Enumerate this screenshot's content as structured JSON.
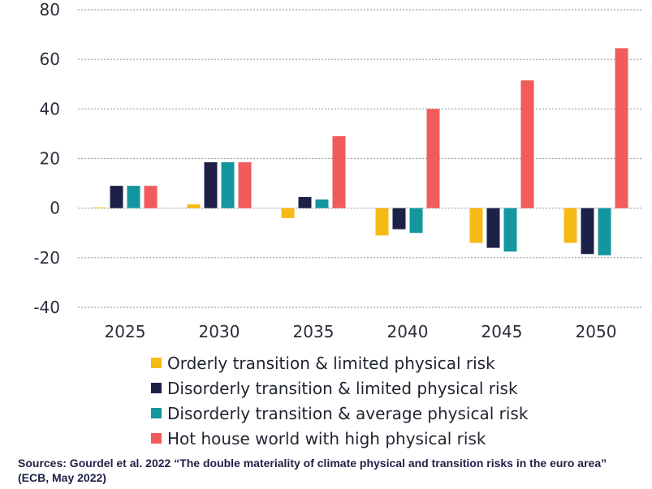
{
  "chart_data": {
    "type": "bar",
    "categories": [
      "2025",
      "2030",
      "2035",
      "2040",
      "2045",
      "2050"
    ],
    "ylim": [
      -40,
      80
    ],
    "yticks": [
      -40,
      -20,
      0,
      20,
      40,
      60,
      80
    ],
    "grid": "horizontal dotted",
    "legend_placement": "bottom",
    "series": [
      {
        "name": "Orderly transition & limited physical risk",
        "color": "#f7b913",
        "values": [
          0.3,
          1.5,
          -4,
          -11,
          -14,
          -14
        ]
      },
      {
        "name": "Disorderly transition & limited physical risk",
        "color": "#1d2148",
        "values": [
          9,
          18.5,
          4.5,
          -8.5,
          -16,
          -18.5
        ]
      },
      {
        "name": "Disorderly transition & average physical risk",
        "color": "#13969d",
        "values": [
          9,
          18.5,
          3.5,
          -10,
          -17.5,
          -19
        ]
      },
      {
        "name": "Hot house world with high physical risk",
        "color": "#f15b5b",
        "values": [
          9,
          18.5,
          29,
          40,
          51.5,
          64.5
        ]
      }
    ]
  },
  "source": {
    "line1": "Sources: Gourdel et al. 2022 “The double materiality of climate physical and transition risks in the euro area”",
    "line2": "(ECB, May 2022)"
  }
}
